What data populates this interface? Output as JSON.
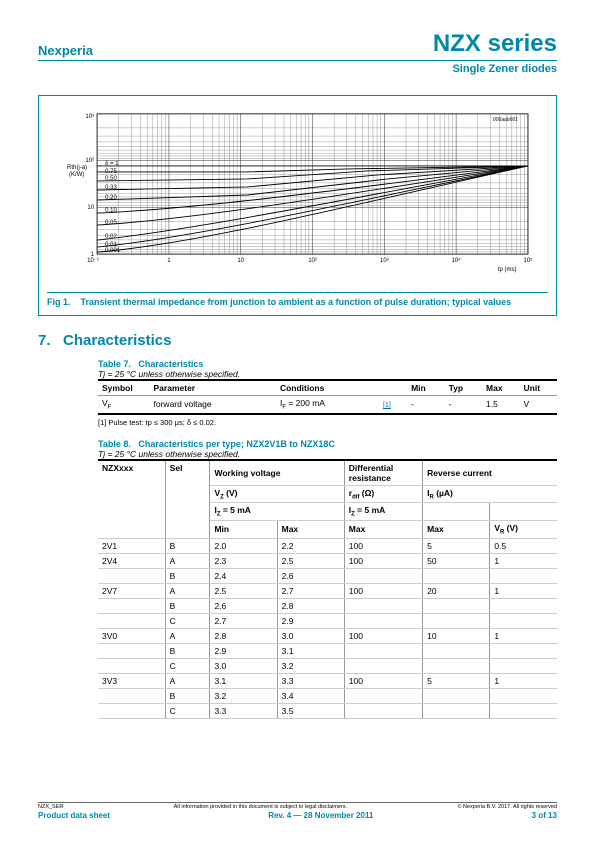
{
  "header": {
    "brand": "Nexperia",
    "series": "NZX series",
    "subtitle": "Single Zener diodes"
  },
  "figure": {
    "id_text": "006aab601",
    "caption_prefix": "Fig 1.",
    "caption": "Transient thermal impedance from junction to ambient as a function of pulse duration; typical values",
    "ylabel": "Rth(j-a)\n(K/W)",
    "xlabel": "tp (ms)",
    "xlim": [
      0.1,
      100000
    ],
    "ylim": [
      1,
      1000
    ],
    "xticks_labels": [
      "10⁻¹",
      "1",
      "10",
      "10²",
      "10³",
      "10⁴",
      "10⁵"
    ],
    "yticks_labels": [
      "1",
      "10",
      "10²",
      "10³"
    ],
    "curve_labels": [
      "δ = 1",
      "0.75",
      "0.50",
      "0.33",
      "0.20",
      "0.10",
      "0.05",
      "0.02",
      "0.01",
      "0.001"
    ],
    "line_color": "#000000",
    "grid_color": "#000000",
    "background_color": "#ffffff"
  },
  "section7": {
    "number": "7.",
    "title": "Characteristics"
  },
  "table7": {
    "label": "Table 7.",
    "title": "Characteristics",
    "condition": "Tj = 25 °C unless otherwise specified.",
    "headers": [
      "Symbol",
      "Parameter",
      "Conditions",
      "",
      "Min",
      "Typ",
      "Max",
      "Unit"
    ],
    "row": {
      "symbol": "VF",
      "param": "forward voltage",
      "cond": "IF = 200 mA",
      "ref": "[1]",
      "min": "-",
      "typ": "-",
      "max": "1.5",
      "unit": "V"
    },
    "footnote": "[1]   Pulse test: tp ≤ 300 μs; δ ≤ 0.02."
  },
  "table8": {
    "label": "Table 8.",
    "title": "Characteristics per type; NZX2V1B to NZX18C",
    "condition": "Tj = 25 °C unless otherwise specified.",
    "h1": {
      "c1": "NZXxxx",
      "c2": "Sel",
      "c3": "Working voltage",
      "c4": "Differential resistance",
      "c5": "Reverse current"
    },
    "h2": {
      "c3": "VZ (V)",
      "c4": "rdif (Ω)",
      "c5": "IR (µA)"
    },
    "h3": {
      "c3": "IZ = 5 mA",
      "c4": "IZ = 5 mA",
      "c5a": "",
      "c5b": ""
    },
    "h4": {
      "c3a": "Min",
      "c3b": "Max",
      "c4": "Max",
      "c5a": "Max",
      "c5b": "VR (V)"
    },
    "rows": [
      {
        "nzx": "2V1",
        "sel": "B",
        "min": "2.0",
        "max": "2.2",
        "rdif": "100",
        "ir": "5",
        "vr": "0.5"
      },
      {
        "nzx": "2V4",
        "sel": "A",
        "min": "2.3",
        "max": "2.5",
        "rdif": "100",
        "ir": "50",
        "vr": "1"
      },
      {
        "nzx": "",
        "sel": "B",
        "min": "2.4",
        "max": "2.6",
        "rdif": "",
        "ir": "",
        "vr": ""
      },
      {
        "nzx": "2V7",
        "sel": "A",
        "min": "2.5",
        "max": "2.7",
        "rdif": "100",
        "ir": "20",
        "vr": "1"
      },
      {
        "nzx": "",
        "sel": "B",
        "min": "2.6",
        "max": "2.8",
        "rdif": "",
        "ir": "",
        "vr": ""
      },
      {
        "nzx": "",
        "sel": "C",
        "min": "2.7",
        "max": "2.9",
        "rdif": "",
        "ir": "",
        "vr": ""
      },
      {
        "nzx": "3V0",
        "sel": "A",
        "min": "2.8",
        "max": "3.0",
        "rdif": "100",
        "ir": "10",
        "vr": "1"
      },
      {
        "nzx": "",
        "sel": "B",
        "min": "2.9",
        "max": "3.1",
        "rdif": "",
        "ir": "",
        "vr": ""
      },
      {
        "nzx": "",
        "sel": "C",
        "min": "3.0",
        "max": "3.2",
        "rdif": "",
        "ir": "",
        "vr": ""
      },
      {
        "nzx": "3V3",
        "sel": "A",
        "min": "3.1",
        "max": "3.3",
        "rdif": "100",
        "ir": "5",
        "vr": "1"
      },
      {
        "nzx": "",
        "sel": "B",
        "min": "3.2",
        "max": "3.4",
        "rdif": "",
        "ir": "",
        "vr": ""
      },
      {
        "nzx": "",
        "sel": "C",
        "min": "3.3",
        "max": "3.5",
        "rdif": "",
        "ir": "",
        "vr": ""
      }
    ]
  },
  "footer": {
    "doc_id": "NZX_SER",
    "disclaimer": "All information provided in this document is subject to legal disclaimers.",
    "copyright": "© Nexperia B.V. 2017. All rights reserved",
    "left": "Product data sheet",
    "center": "Rev. 4 — 28 November 2011",
    "right": "3 of 13"
  }
}
